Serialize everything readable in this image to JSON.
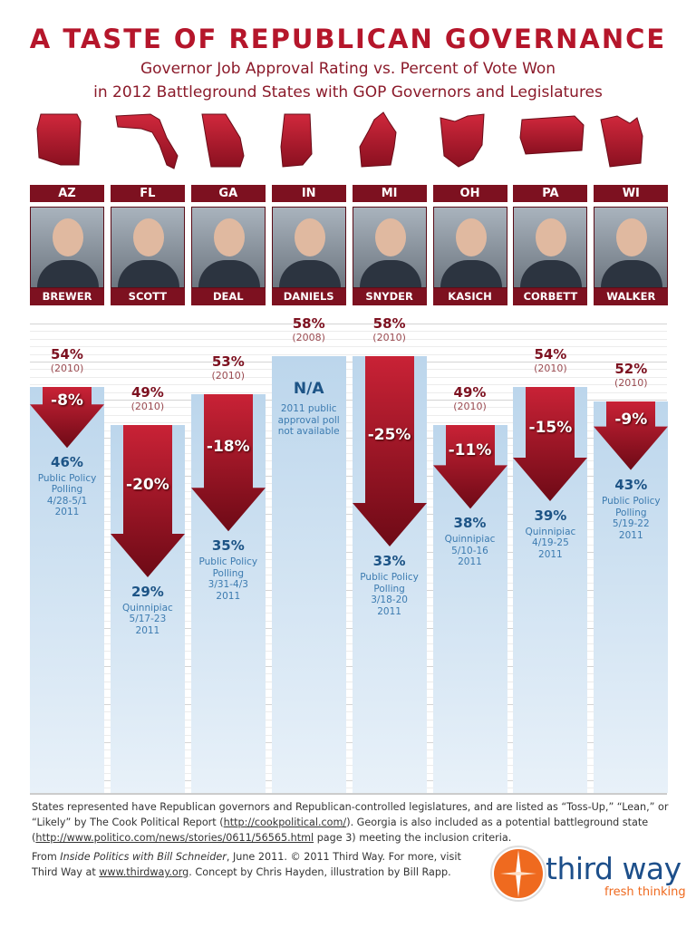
{
  "header": {
    "title": "A TASTE OF REPUBLICAN GOVERNANCE",
    "subtitle_line1": "Governor Job Approval Rating vs. Percent of Vote Won",
    "subtitle_line2": "in 2012 Battleground States with GOP Governors and Legislatures"
  },
  "colors": {
    "accent": "#b5162b",
    "dark_red": "#7d1120",
    "blue_text": "#1d5486",
    "bar_blue": "#c4dcef"
  },
  "chart_data": {
    "type": "bar",
    "title": "A TASTE OF REPUBLICAN GOVERNANCE",
    "categories": [
      "AZ",
      "FL",
      "GA",
      "IN",
      "MI",
      "OH",
      "PA",
      "WI"
    ],
    "governors": [
      "BREWER",
      "SCOTT",
      "DEAL",
      "DANIELS",
      "SNYDER",
      "KASICH",
      "CORBETT",
      "WALKER"
    ],
    "series": [
      {
        "name": "Percent of Vote Won",
        "values": [
          54,
          49,
          53,
          58,
          58,
          49,
          54,
          52
        ],
        "years": [
          "(2010)",
          "(2010)",
          "(2010)",
          "(2008)",
          "(2010)",
          "(2010)",
          "(2010)",
          "(2010)"
        ]
      },
      {
        "name": "Governor Job Approval Rating",
        "values": [
          46,
          29,
          35,
          null,
          33,
          38,
          39,
          43
        ]
      }
    ],
    "changes": [
      "-8%",
      "-20%",
      "-18%",
      null,
      "-25%",
      "-11%",
      "-15%",
      "-9%"
    ],
    "sources": [
      [
        "Public Policy",
        "Polling",
        "4/28-5/1",
        "2011"
      ],
      [
        "Quinnipiac",
        "5/17-23",
        "2011"
      ],
      [
        "Public Policy",
        "Polling",
        "3/31-4/3",
        "2011"
      ],
      [
        "2011 public",
        "approval poll",
        "not available"
      ],
      [
        "Public Policy",
        "Polling",
        "3/18-20",
        "2011"
      ],
      [
        "Quinnipiac",
        "5/10-16",
        "2011"
      ],
      [
        "Quinnipiac",
        "4/19-25",
        "2011"
      ],
      [
        "Public Policy",
        "Polling",
        "5/19-22",
        "2011"
      ]
    ],
    "na_label": "N/A",
    "grid": true
  },
  "footer": {
    "note": "States represented have Republican governors and Republican-controlled legislatures, and are listed as “Toss-Up,” “Lean,” or “Likely” by The Cook Political Report (",
    "link1": "http://cookpolitical.com/",
    "note2": "). Georgia is also included as a potential battleground state (",
    "link2": "http://www.politico.com/news/stories/0611/56565.html",
    "note3": " page 3) meeting the inclusion criteria.",
    "credit_from": "From ",
    "credit_book": "Inside Politics with Bill Schneider",
    "credit_rest": ", June 2011. © 2011 Third Way. For more, visit Third Way at ",
    "credit_link": "www.thirdway.org",
    "credit_end": ". Concept by Chris Hayden, illustration by Bill Rapp."
  },
  "logo": {
    "name": "third way",
    "tagline": "fresh thinking"
  }
}
